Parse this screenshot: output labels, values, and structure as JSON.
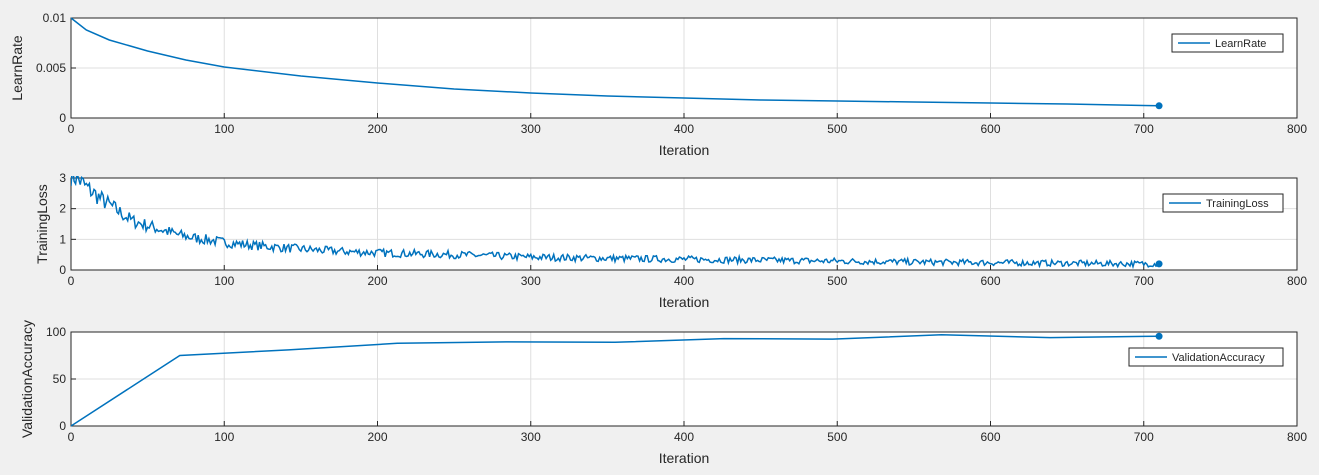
{
  "chart_data": [
    {
      "type": "line",
      "xlabel": "Iteration",
      "ylabel": "LearnRate",
      "xlim": [
        0,
        800
      ],
      "ylim": [
        0,
        0.01
      ],
      "xticks": [
        "0",
        "100",
        "200",
        "300",
        "400",
        "500",
        "600",
        "700",
        "800"
      ],
      "yticks": [
        "0",
        "0.005",
        "0.01"
      ],
      "grid": true,
      "legend_position": "top-right",
      "series": [
        {
          "name": "LearnRate",
          "color": "#0072BD",
          "marker": "end-dot",
          "x": [
            0,
            10,
            25,
            50,
            75,
            100,
            150,
            200,
            250,
            300,
            350,
            400,
            450,
            500,
            550,
            600,
            650,
            700,
            710
          ],
          "y": [
            0.01,
            0.0088,
            0.0078,
            0.0067,
            0.0058,
            0.0051,
            0.0042,
            0.0035,
            0.0029,
            0.0025,
            0.0022,
            0.002,
            0.0018,
            0.0017,
            0.0016,
            0.0015,
            0.0014,
            0.00125,
            0.00122
          ]
        }
      ]
    },
    {
      "type": "line",
      "xlabel": "Iteration",
      "ylabel": "TrainingLoss",
      "xlim": [
        0,
        800
      ],
      "ylim": [
        0,
        3
      ],
      "xticks": [
        "0",
        "100",
        "200",
        "300",
        "400",
        "500",
        "600",
        "700",
        "800"
      ],
      "yticks": [
        "0",
        "1",
        "2",
        "3"
      ],
      "grid": true,
      "legend_position": "top-right",
      "series": [
        {
          "name": "TrainingLoss",
          "color": "#0072BD",
          "marker": "end-dot",
          "x": [
            0,
            5,
            10,
            20,
            30,
            40,
            50,
            60,
            70,
            80,
            90,
            100,
            120,
            140,
            160,
            180,
            200,
            250,
            300,
            350,
            400,
            450,
            500,
            550,
            600,
            650,
            700,
            710
          ],
          "y": [
            3.1,
            2.95,
            2.7,
            2.3,
            1.95,
            1.6,
            1.45,
            1.3,
            1.15,
            1.05,
            0.98,
            0.9,
            0.8,
            0.72,
            0.65,
            0.6,
            0.56,
            0.5,
            0.42,
            0.38,
            0.35,
            0.32,
            0.29,
            0.26,
            0.24,
            0.22,
            0.2,
            0.2
          ]
        }
      ]
    },
    {
      "type": "line",
      "xlabel": "Iteration",
      "ylabel": "ValidationAccuracy",
      "xlim": [
        0,
        800
      ],
      "ylim": [
        0,
        100
      ],
      "xticks": [
        "0",
        "100",
        "200",
        "300",
        "400",
        "500",
        "600",
        "700",
        "800"
      ],
      "yticks": [
        "0",
        "50",
        "100"
      ],
      "grid": true,
      "legend_position": "top-right",
      "series": [
        {
          "name": "ValidationAccuracy",
          "color": "#0072BD",
          "marker": "end-dot",
          "x": [
            0,
            71,
            142,
            213,
            284,
            355,
            426,
            497,
            568,
            639,
            710
          ],
          "y": [
            0,
            75,
            81,
            88,
            89.5,
            89,
            93,
            92.5,
            97,
            94,
            95.5
          ]
        }
      ]
    }
  ]
}
